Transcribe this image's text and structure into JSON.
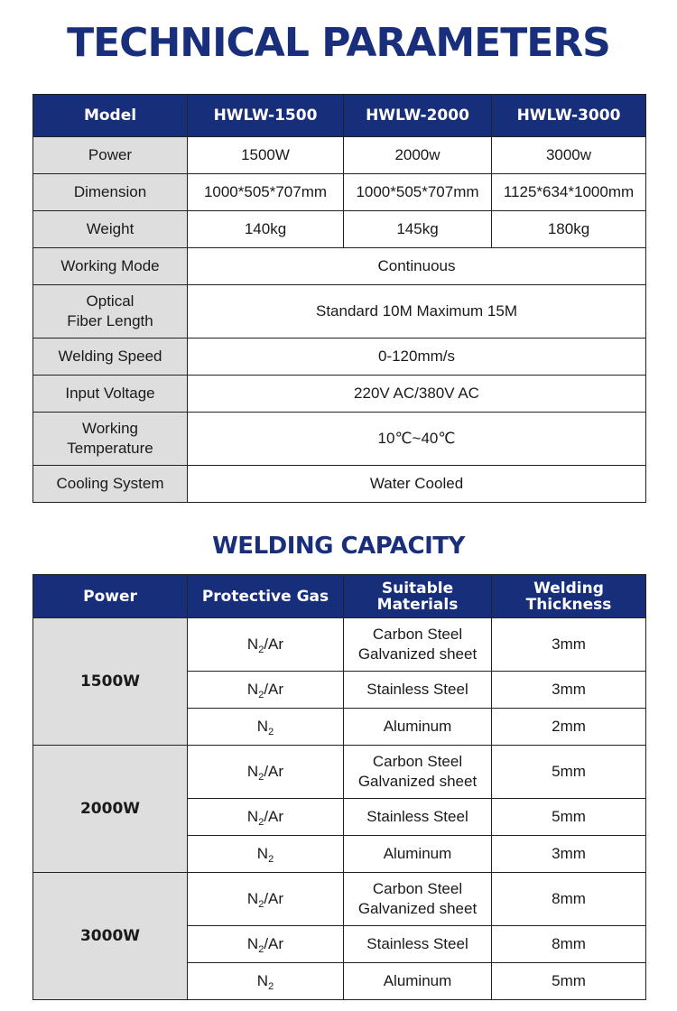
{
  "titles": {
    "technical": "TECHNICAL PARAMETERS",
    "capacity": "WELDING CAPACITY"
  },
  "colors": {
    "header_bg": "#172f7a",
    "title": "#1a2f7c",
    "label_bg": "#dedede"
  },
  "spec": {
    "headers": [
      "Model",
      "HWLW-1500",
      "HWLW-2000",
      "HWLW-3000"
    ],
    "rows": [
      {
        "label": "Power",
        "values": [
          "1500W",
          "2000w",
          "3000w"
        ]
      },
      {
        "label": "Dimension",
        "values": [
          "1000*505*707mm",
          "1000*505*707mm",
          "1125*634*1000mm"
        ]
      },
      {
        "label": "Weight",
        "values": [
          "140kg",
          "145kg",
          "180kg"
        ]
      },
      {
        "label": "Working Mode",
        "shared": "Continuous"
      },
      {
        "label": "Optical",
        "label2": "Fiber Length",
        "shared": "Standard 10M Maximum 15M"
      },
      {
        "label": "Welding Speed",
        "shared": "0-120mm/s"
      },
      {
        "label": "Input Voltage",
        "shared": "220V AC/380V AC"
      },
      {
        "label": "Working",
        "label2": "Temperature",
        "shared": "10℃~40℃"
      },
      {
        "label": "Cooling System",
        "shared": "Water Cooled"
      }
    ]
  },
  "capacity": {
    "headers": [
      "Power",
      "Protective Gas",
      "Suitable",
      "Materials",
      "Welding",
      "Thickness"
    ],
    "groups": [
      {
        "power": "1500W",
        "rows": [
          {
            "gas": "N",
            "sub": "2",
            "suffix": "/Ar",
            "m1": "Carbon Steel",
            "m2": "Galvanized sheet",
            "t": "3mm"
          },
          {
            "gas": "N",
            "sub": "2",
            "suffix": "/Ar",
            "m1": "Stainless Steel",
            "t": "3mm"
          },
          {
            "gas": "N",
            "sub": "2",
            "suffix": "",
            "m1": "Aluminum",
            "t": "2mm"
          }
        ]
      },
      {
        "power": "2000W",
        "rows": [
          {
            "gas": "N",
            "sub": "2",
            "suffix": "/Ar",
            "m1": "Carbon Steel",
            "m2": "Galvanized sheet",
            "t": "5mm"
          },
          {
            "gas": "N",
            "sub": "2",
            "suffix": "/Ar",
            "m1": "Stainless Steel",
            "t": "5mm"
          },
          {
            "gas": "N",
            "sub": "2",
            "suffix": "",
            "m1": "Aluminum",
            "t": "3mm"
          }
        ]
      },
      {
        "power": "3000W",
        "rows": [
          {
            "gas": "N",
            "sub": "2",
            "suffix": "/Ar",
            "m1": "Carbon Steel",
            "m2": "Galvanized sheet",
            "t": "8mm"
          },
          {
            "gas": "N",
            "sub": "2",
            "suffix": "/Ar",
            "m1": "Stainless Steel",
            "t": "8mm"
          },
          {
            "gas": "N",
            "sub": "2",
            "suffix": "",
            "m1": "Aluminum",
            "t": "5mm"
          }
        ]
      }
    ]
  }
}
